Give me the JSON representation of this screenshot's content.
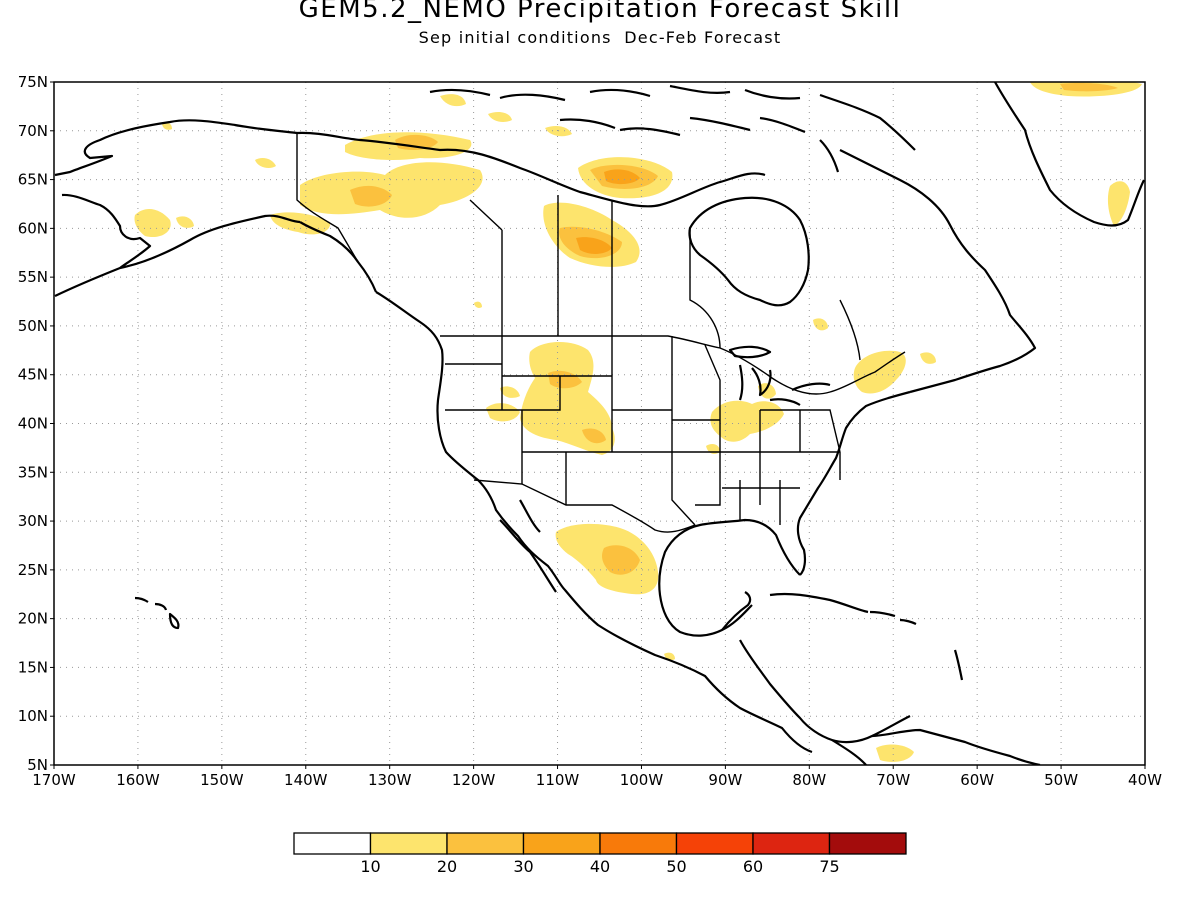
{
  "title": "GEM5.2_NEMO Precipitation Forecast Skill",
  "subtitle": "Sep initial conditions  Dec-Feb Forecast",
  "map": {
    "projection": "lat-lon",
    "lon_range": [
      -170,
      -40
    ],
    "lat_range": [
      5,
      75
    ],
    "grid": "dotted",
    "lat_ticks": [
      "5N",
      "10N",
      "15N",
      "20N",
      "25N",
      "30N",
      "35N",
      "40N",
      "45N",
      "50N",
      "55N",
      "60N",
      "65N",
      "70N",
      "75N"
    ],
    "lon_ticks": [
      "170W",
      "160W",
      "150W",
      "140W",
      "130W",
      "120W",
      "110W",
      "100W",
      "90W",
      "80W",
      "70W",
      "60W",
      "50W",
      "40W"
    ]
  },
  "colorbar": {
    "labels": [
      "10",
      "20",
      "30",
      "40",
      "50",
      "60",
      "75"
    ],
    "colors": [
      "#ffffff",
      "#fde46d",
      "#fbc13e",
      "#f9a31a",
      "#f87a0a",
      "#f54207",
      "#dd2511",
      "#a30c0c"
    ]
  },
  "chart_data": {
    "type": "heatmap",
    "variable": "Precipitation Forecast Skill",
    "levels": [
      10,
      20,
      30,
      40,
      50,
      60,
      75
    ],
    "regions": [
      {
        "lon": -126,
        "lat": 64,
        "level": 20
      },
      {
        "lon": -103,
        "lat": 65,
        "level": 30
      },
      {
        "lon": -106,
        "lat": 58,
        "level": 30
      },
      {
        "lon": -108,
        "lat": 46,
        "level": 20
      },
      {
        "lon": -107,
        "lat": 44,
        "level": 20
      },
      {
        "lon": -108,
        "lat": 41,
        "level": 10
      },
      {
        "lon": -105,
        "lat": 26.5,
        "level": 20
      },
      {
        "lon": -88,
        "lat": 41,
        "level": 10
      },
      {
        "lon": -73,
        "lat": 44.5,
        "level": 10
      },
      {
        "lon": -45,
        "lat": 74.5,
        "level": 20
      },
      {
        "lon": -158,
        "lat": 60,
        "level": 10
      }
    ]
  }
}
